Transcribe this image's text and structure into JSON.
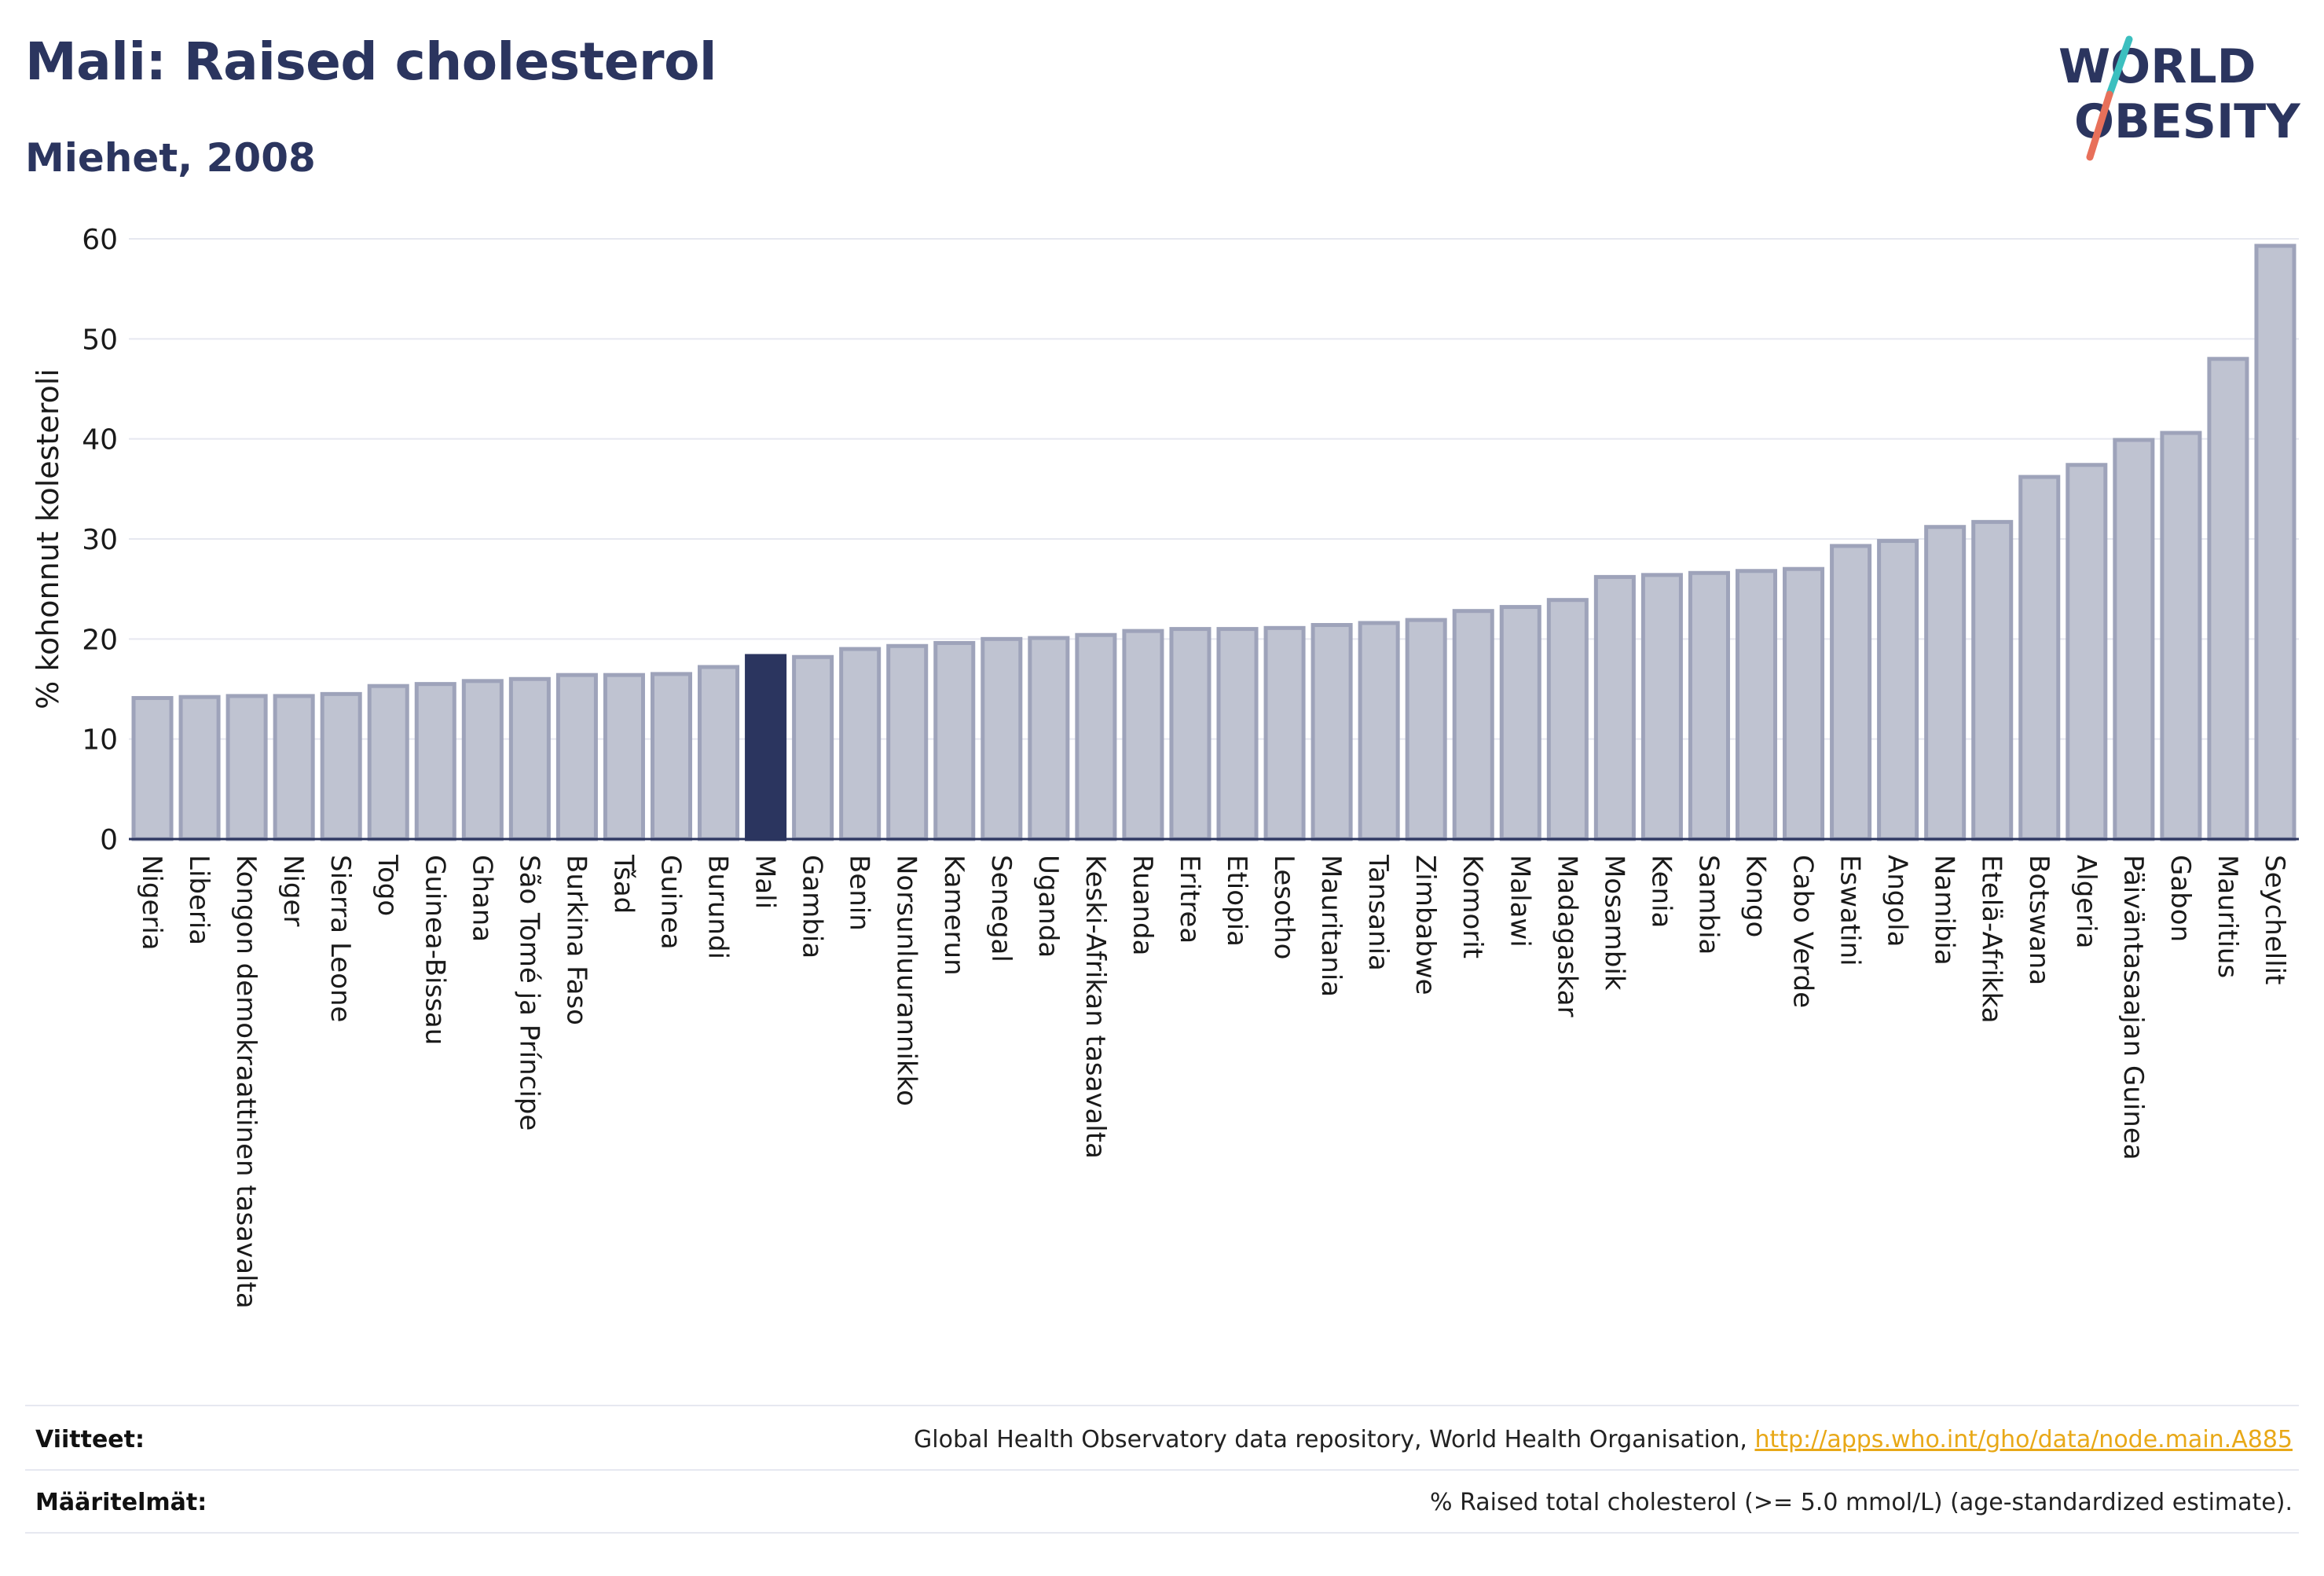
{
  "header": {
    "title": "Mali: Raised cholesterol",
    "subtitle": "Miehet, 2008"
  },
  "logo": {
    "line1": "WORLD",
    "line2": "OBESITY",
    "colors": {
      "text": "#2b355f",
      "slash_top": "#3cbfbf",
      "slash_bottom": "#e8705a"
    }
  },
  "chart_data": {
    "type": "bar",
    "ylabel": "% kohonnut kolesteroli",
    "xlabel": "",
    "ylim": [
      0,
      60
    ],
    "yticks": [
      0,
      10,
      20,
      30,
      40,
      50,
      60
    ],
    "grid": true,
    "highlight": "Mali",
    "colors": {
      "bar": "#bfc3d1",
      "bar_edge": "#9ea3ba",
      "highlight": "#2b355f",
      "grid": "#e6e8f0"
    },
    "categories": [
      "Nigeria",
      "Liberia",
      "Kongon demokraattinen tasavalta",
      "Niger",
      "Sierra Leone",
      "Togo",
      "Guinea-Bissau",
      "Ghana",
      "São Tomé ja Príncipe",
      "Burkina Faso",
      "Tšad",
      "Guinea",
      "Burundi",
      "Mali",
      "Gambia",
      "Benin",
      "Norsunluurannikko",
      "Kamerun",
      "Senegal",
      "Uganda",
      "Keski-Afrikan tasavalta",
      "Ruanda",
      "Eritrea",
      "Etiopia",
      "Lesotho",
      "Mauritania",
      "Tansania",
      "Zimbabwe",
      "Komorit",
      "Malawi",
      "Madagaskar",
      "Mosambik",
      "Kenia",
      "Sambia",
      "Kongo",
      "Cabo Verde",
      "Eswatini",
      "Angola",
      "Namibia",
      "Etelä-Afrikka",
      "Botswana",
      "Algeria",
      "Päiväntasaajan Guinea",
      "Gabon",
      "Mauritius",
      "Seychellit"
    ],
    "values": [
      14.1,
      14.2,
      14.3,
      14.3,
      14.5,
      15.3,
      15.5,
      15.8,
      16.0,
      16.4,
      16.4,
      16.5,
      17.2,
      18.3,
      18.2,
      19.0,
      19.3,
      19.6,
      20.0,
      20.1,
      20.4,
      20.8,
      21.0,
      21.0,
      21.1,
      21.4,
      21.6,
      21.9,
      22.8,
      23.2,
      23.9,
      26.2,
      26.4,
      26.6,
      26.8,
      27.0,
      29.3,
      29.8,
      31.2,
      31.7,
      36.2,
      37.4,
      39.9,
      40.6,
      48.0,
      59.3
    ]
  },
  "footer": {
    "sources_label": "Viitteet:",
    "sources_text": "Global Health Observatory data repository, World Health Organisation, ",
    "sources_link": "http://apps.who.int/gho/data/node.main.A885",
    "definitions_label": "Määritelmät:",
    "definitions_text": "% Raised total cholesterol (>= 5.0 mmol/L) (age-standardized estimate)."
  }
}
